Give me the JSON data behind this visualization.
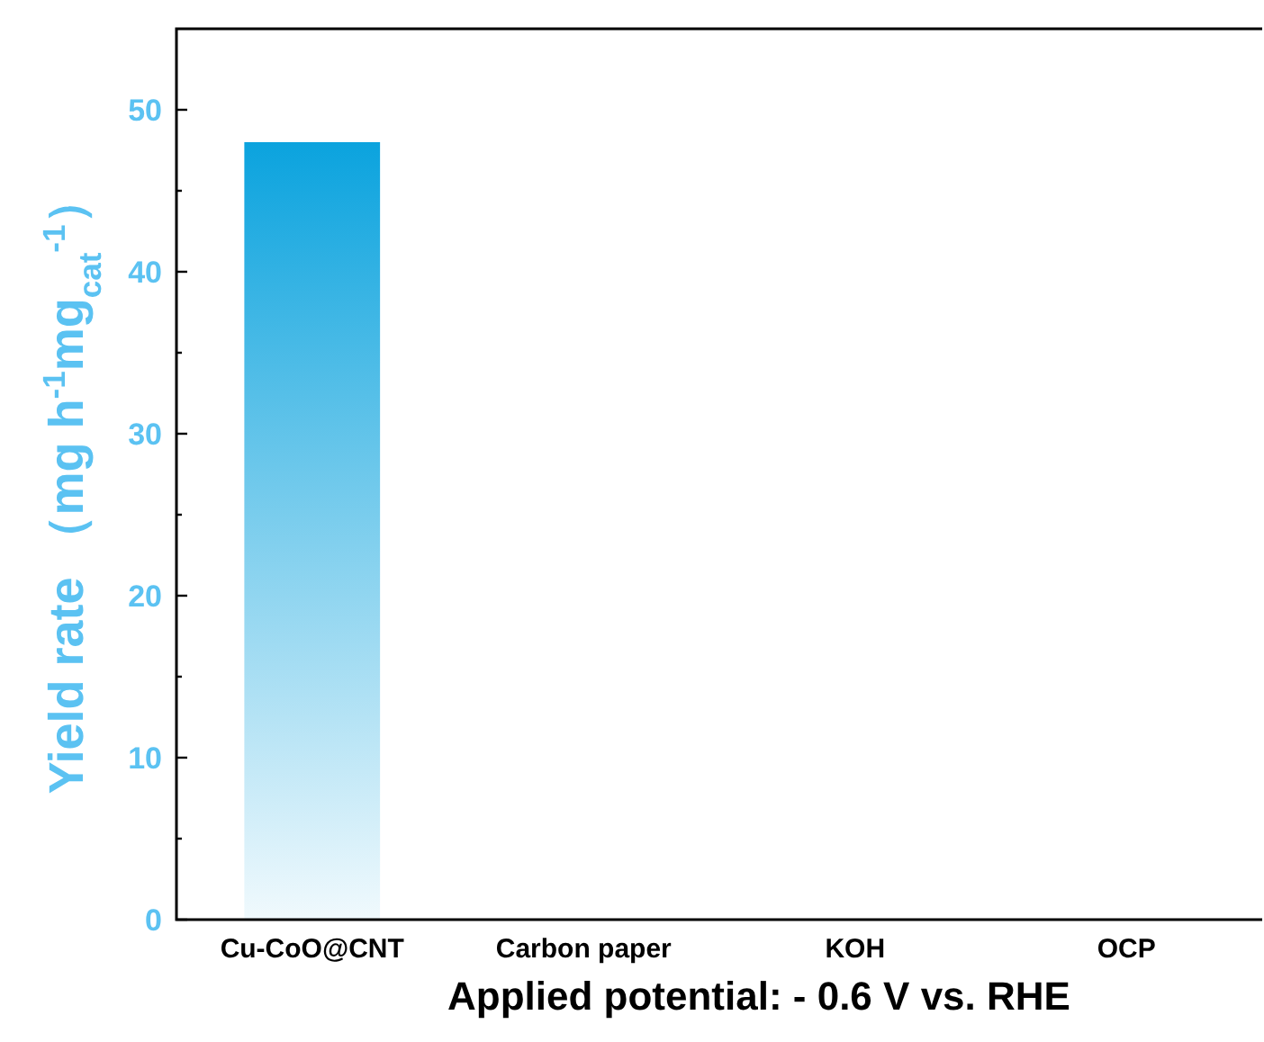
{
  "chart_data": {
    "type": "bar",
    "xlabel": "Applied potential:  - 0.6 V vs. RHE",
    "ylabel": "Yield rate （mg h$^{-1}$mg$_{cat}$$^{-1}$）",
    "categories": [
      "Cu-CoO@CNT",
      "Carbon paper",
      "KOH",
      "OCP"
    ],
    "values": [
      48,
      0,
      0,
      0
    ],
    "color": "#0ba3de",
    "ylim": [
      0,
      55
    ],
    "yticks": [
      0,
      {
        "value": 5,
        "label": null
      },
      10,
      {
        "value": 15,
        "label": null
      },
      20,
      {
        "value": 25,
        "label": null
      },
      30,
      {
        "value": 35,
        "label": null
      },
      40,
      {
        "value": 45,
        "label": null
      },
      50
    ],
    "grid": false
  }
}
